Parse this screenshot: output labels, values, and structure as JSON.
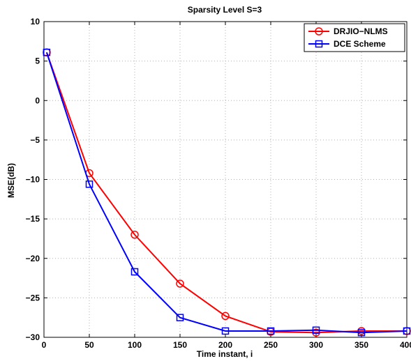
{
  "chart_data": {
    "type": "line",
    "title": "Sparsity Level S=3",
    "xlabel": "Time instant, i",
    "ylabel": "MSE(dB)",
    "xlim": [
      0,
      400
    ],
    "ylim": [
      -30,
      10
    ],
    "xticks": [
      0,
      50,
      100,
      150,
      200,
      250,
      300,
      350,
      400
    ],
    "yticks": [
      10,
      5,
      0,
      -5,
      -10,
      -15,
      -20,
      -25,
      -30
    ],
    "grid": true,
    "legend_position": "top-right",
    "series": [
      {
        "name": "DRJIO−NLMS",
        "color": "#ff0000",
        "marker": "circle",
        "x": [
          3,
          50,
          100,
          150,
          200,
          250,
          300,
          350,
          400
        ],
        "y": [
          6.1,
          -9.2,
          -17.0,
          -23.2,
          -27.3,
          -29.3,
          -29.4,
          -29.2,
          -29.2
        ]
      },
      {
        "name": "DCE Scheme",
        "color": "#0000ff",
        "marker": "square",
        "x": [
          3,
          50,
          100,
          150,
          200,
          250,
          300,
          350,
          400
        ],
        "y": [
          6.1,
          -10.6,
          -21.7,
          -27.5,
          -29.2,
          -29.2,
          -29.1,
          -29.4,
          -29.2
        ]
      }
    ]
  }
}
